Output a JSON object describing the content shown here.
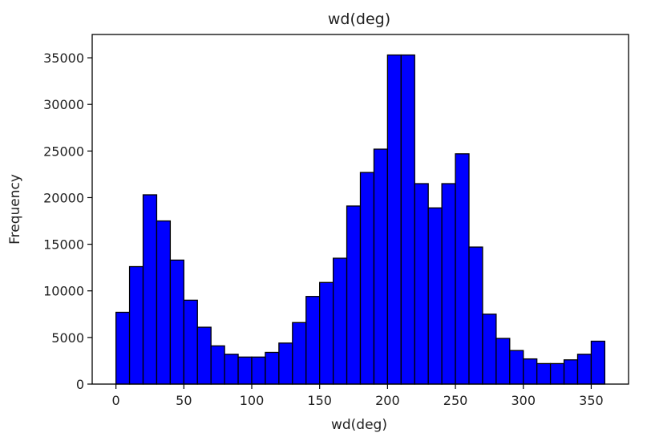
{
  "chart_data": {
    "type": "bar",
    "title": "wd(deg)",
    "xlabel": "wd(deg)",
    "ylabel": "Frequency",
    "xlim": [
      -17.5,
      377.5
    ],
    "ylim": [
      0,
      37500
    ],
    "xticks": [
      0,
      50,
      100,
      150,
      200,
      250,
      300,
      350
    ],
    "yticks": [
      0,
      5000,
      10000,
      15000,
      20000,
      25000,
      30000,
      35000
    ],
    "bin_width": 10,
    "bin_starts": [
      0,
      10,
      20,
      30,
      40,
      50,
      60,
      70,
      80,
      90,
      100,
      110,
      120,
      130,
      140,
      150,
      160,
      170,
      180,
      190,
      200,
      210,
      220,
      230,
      240,
      250,
      260,
      270,
      280,
      290,
      300,
      310,
      320,
      330,
      340,
      350
    ],
    "values": [
      7700,
      12600,
      20300,
      17500,
      13300,
      9000,
      6100,
      4100,
      3200,
      2900,
      2900,
      3400,
      4400,
      6600,
      9400,
      10900,
      13500,
      19100,
      22700,
      25200,
      35300,
      35300,
      21500,
      18900,
      21500,
      24700,
      14700,
      7500,
      4900,
      3600,
      2700,
      2200,
      2200,
      2600,
      3200,
      4600
    ],
    "grid": false,
    "colors": {
      "bar_fill": "#0000ff",
      "bar_edge": "#000000",
      "axes": "#000000"
    }
  }
}
